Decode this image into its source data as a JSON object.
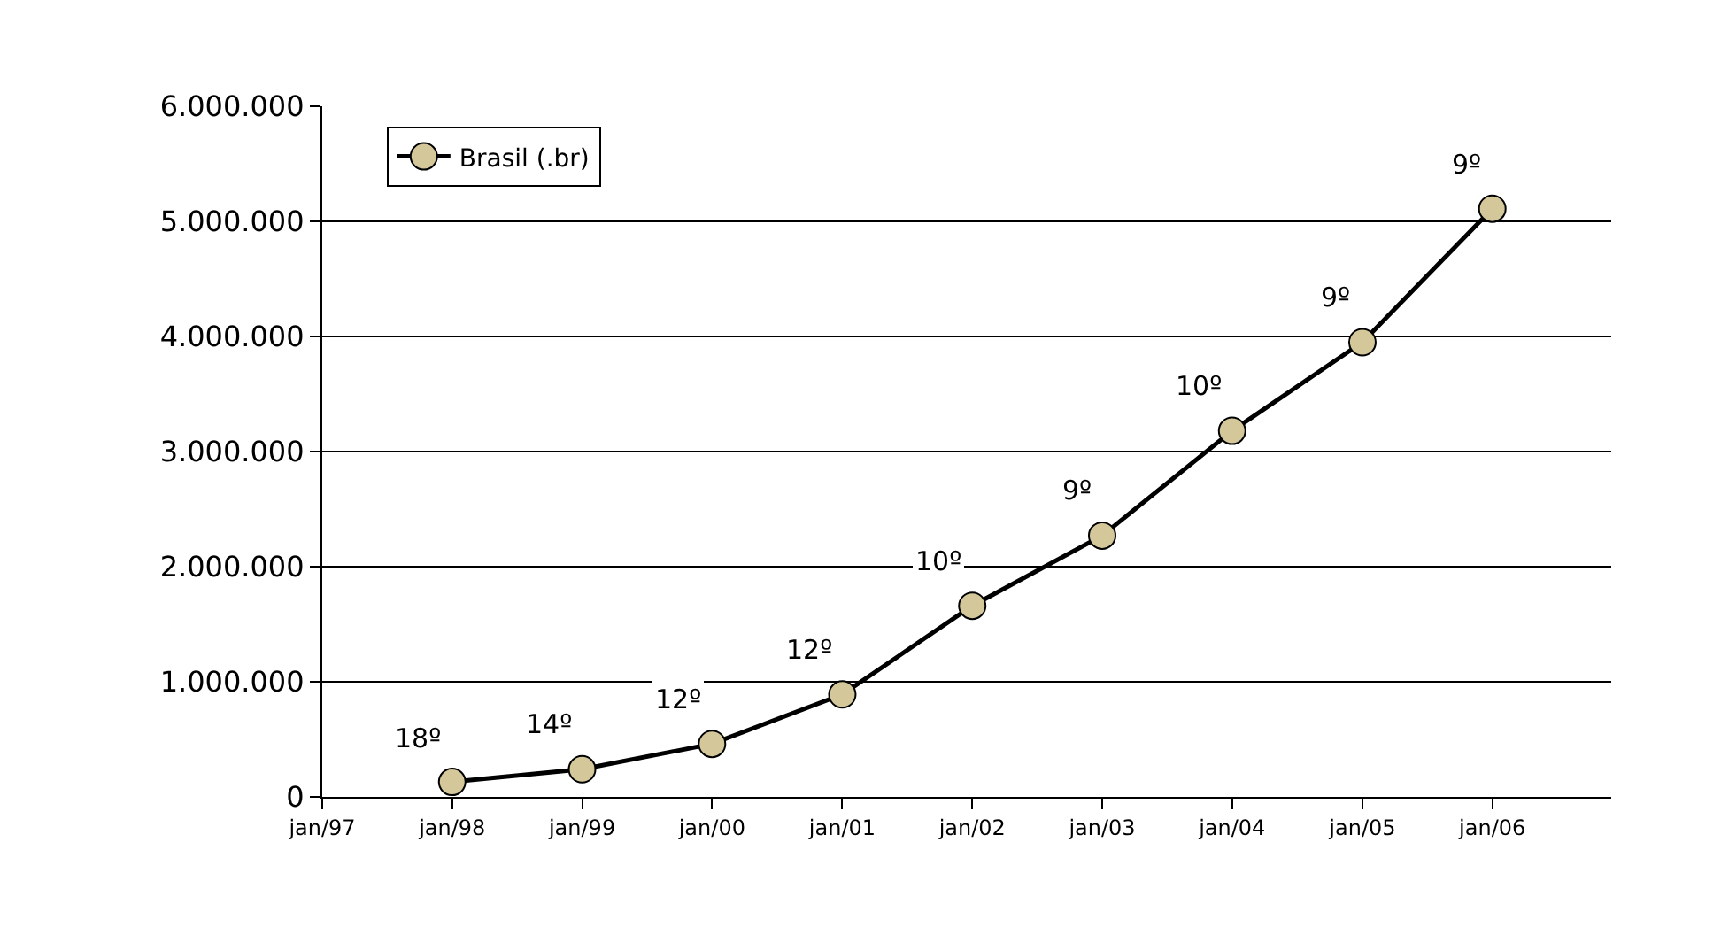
{
  "chart_data": {
    "type": "line",
    "x": [
      "1998-01",
      "1999-01",
      "2000-01",
      "2001-01",
      "2002-01",
      "2003-01",
      "2004-01",
      "2005-01",
      "2006-01"
    ],
    "series": [
      {
        "name": "Brasil (.br)",
        "color": "#d4c89a",
        "values": [
          130000,
          240000,
          460000,
          890000,
          1660000,
          2270000,
          3180000,
          3950000,
          5110000
        ]
      }
    ],
    "annotations": [
      {
        "text": "18º",
        "x": "1998-01",
        "y": 130000
      },
      {
        "text": "14º",
        "x": "1999-01",
        "y": 240000
      },
      {
        "text": "12º",
        "x": "2000-01",
        "y": 460000
      },
      {
        "text": "12º",
        "x": "2001-01",
        "y": 890000
      },
      {
        "text": "10º",
        "x": "2002-01",
        "y": 1660000
      },
      {
        "text": "9º",
        "x": "2003-01",
        "y": 2270000
      },
      {
        "text": "10º",
        "x": "2004-01",
        "y": 3180000
      },
      {
        "text": "9º",
        "x": "2005-01",
        "y": 3950000
      },
      {
        "text": "9º",
        "x": "2006-01",
        "y": 5110000
      }
    ],
    "xlim": [
      "1997-01",
      "2006-12"
    ],
    "xticks": [
      {
        "value": "1997-01",
        "label": "jan/97"
      },
      {
        "value": "1998-01",
        "label": "jan/98"
      },
      {
        "value": "1999-01",
        "label": "jan/99"
      },
      {
        "value": "2000-01",
        "label": "jan/00"
      },
      {
        "value": "2001-01",
        "label": "jan/01"
      },
      {
        "value": "2002-01",
        "label": "jan/02"
      },
      {
        "value": "2003-01",
        "label": "jan/03"
      },
      {
        "value": "2004-01",
        "label": "jan/04"
      },
      {
        "value": "2005-01",
        "label": "jan/05"
      },
      {
        "value": "2006-01",
        "label": "jan/06"
      }
    ],
    "ylim": [
      0,
      6000000
    ],
    "yticks": [
      0,
      {
        "value": 1000000,
        "label": "1.000.000"
      },
      {
        "value": 2000000,
        "label": "2.000.000"
      },
      {
        "value": 3000000,
        "label": "3.000.000"
      },
      {
        "value": 4000000,
        "label": "4.000.000"
      },
      {
        "value": 5000000,
        "label": "5.000.000"
      },
      {
        "value": 6000000,
        "label": "6.000.000"
      }
    ],
    "grid": "y",
    "legend": "top left",
    "marker": "circle",
    "line_style": "solid"
  }
}
